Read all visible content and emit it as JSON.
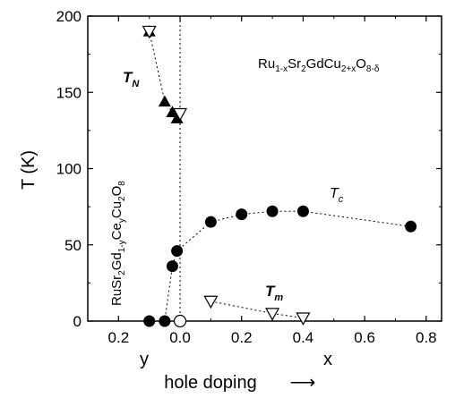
{
  "chart_data": {
    "type": "scatter",
    "title": "",
    "xlabel": "hole doping",
    "xlabel_arrow": "⟶",
    "ylabel": "T (K)",
    "x_axis": {
      "range": [
        -0.3,
        0.85
      ],
      "left_side_label": "y",
      "right_side_label": "x",
      "ticks": [
        {
          "value": -0.2,
          "label": "0.2"
        },
        {
          "value": 0.0,
          "label": "0.0"
        },
        {
          "value": 0.2,
          "label": "0.2"
        },
        {
          "value": 0.4,
          "label": "0.4"
        },
        {
          "value": 0.6,
          "label": "0.6"
        },
        {
          "value": 0.8,
          "label": "0.8"
        }
      ]
    },
    "y_axis": {
      "range": [
        0,
        200
      ],
      "ticks": [
        {
          "value": 0,
          "label": "0"
        },
        {
          "value": 50,
          "label": "50"
        },
        {
          "value": 100,
          "label": "100"
        },
        {
          "value": 150,
          "label": "150"
        },
        {
          "value": 200,
          "label": "200"
        }
      ]
    },
    "reference_line_x": 0.0,
    "annotations": {
      "right_compound": {
        "base": [
          "Ru",
          "Sr",
          "GdCu",
          "O"
        ],
        "subs": [
          "1-x",
          "2",
          "2+x",
          "8-δ"
        ]
      },
      "left_compound": {
        "base": [
          "RuSr",
          "Gd",
          "Ce",
          "Cu",
          "O"
        ],
        "subs": [
          "2",
          "1-y",
          "y",
          "2",
          "8"
        ]
      }
    },
    "series": [
      {
        "label_base": "T",
        "label_sub": "N",
        "marker": "triangle-up-filled",
        "points": [
          [
            -0.1,
            190
          ],
          [
            -0.05,
            144
          ],
          [
            -0.025,
            137
          ],
          [
            -0.01,
            133
          ]
        ]
      },
      {
        "label_base": "T",
        "label_sub": "N",
        "marker": "triangle-down-open",
        "points": [
          [
            -0.1,
            190
          ],
          [
            0.0,
            136
          ]
        ]
      },
      {
        "label_base": "T",
        "label_sub": "c",
        "marker": "circle-filled",
        "points": [
          [
            -0.1,
            0
          ],
          [
            -0.05,
            0
          ],
          [
            -0.025,
            36
          ],
          [
            -0.01,
            46
          ],
          [
            0.1,
            65
          ],
          [
            0.2,
            70
          ],
          [
            0.3,
            72
          ],
          [
            0.4,
            72
          ],
          [
            0.75,
            62
          ]
        ]
      },
      {
        "label_base": "T",
        "label_sub": "c",
        "marker": "circle-open",
        "points": [
          [
            0.0,
            0
          ]
        ]
      },
      {
        "label_base": "T",
        "label_sub": "m",
        "marker": "triangle-down-open",
        "points": [
          [
            0.1,
            13
          ],
          [
            0.3,
            5
          ],
          [
            0.4,
            2
          ]
        ]
      }
    ]
  }
}
